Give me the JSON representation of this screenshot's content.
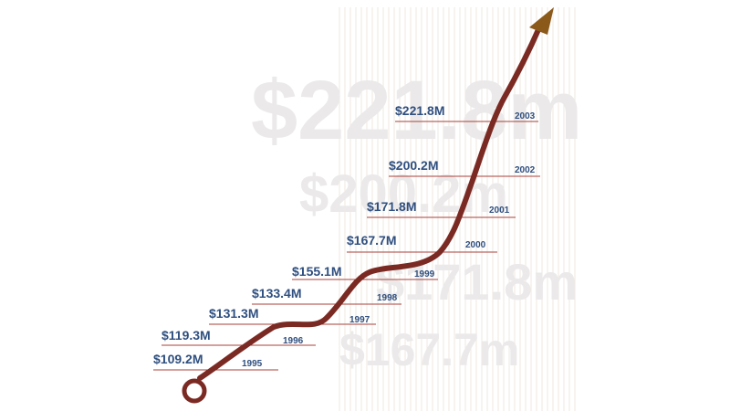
{
  "chart_data": {
    "type": "line",
    "title": "",
    "xlabel": "",
    "ylabel": "",
    "categories": [
      "1995",
      "1996",
      "1997",
      "1998",
      "1999",
      "2000",
      "2001",
      "2002",
      "2003"
    ],
    "series": [
      {
        "values": [
          109.2,
          119.3,
          131.3,
          133.4,
          155.1,
          167.7,
          171.8,
          200.2,
          221.8
        ]
      }
    ],
    "labels": [
      "$109.2M",
      "$119.3M",
      "$131.3M",
      "$133.4M",
      "$155.1M",
      "$167.7M",
      "$171.8M",
      "$200.2M",
      "$221.8M"
    ],
    "watermarks": [
      "$221.8m",
      "$200.2m",
      "$171.8m",
      "$167.7m"
    ],
    "colors": {
      "line": "#7b2a23",
      "arrowhead": "#8b5a1a",
      "text": "#2f4f7f",
      "rule": "#a8423a",
      "watermark": "#ebe9e9",
      "stripes": "#efe9e1"
    },
    "grid": true,
    "legend": "none"
  }
}
